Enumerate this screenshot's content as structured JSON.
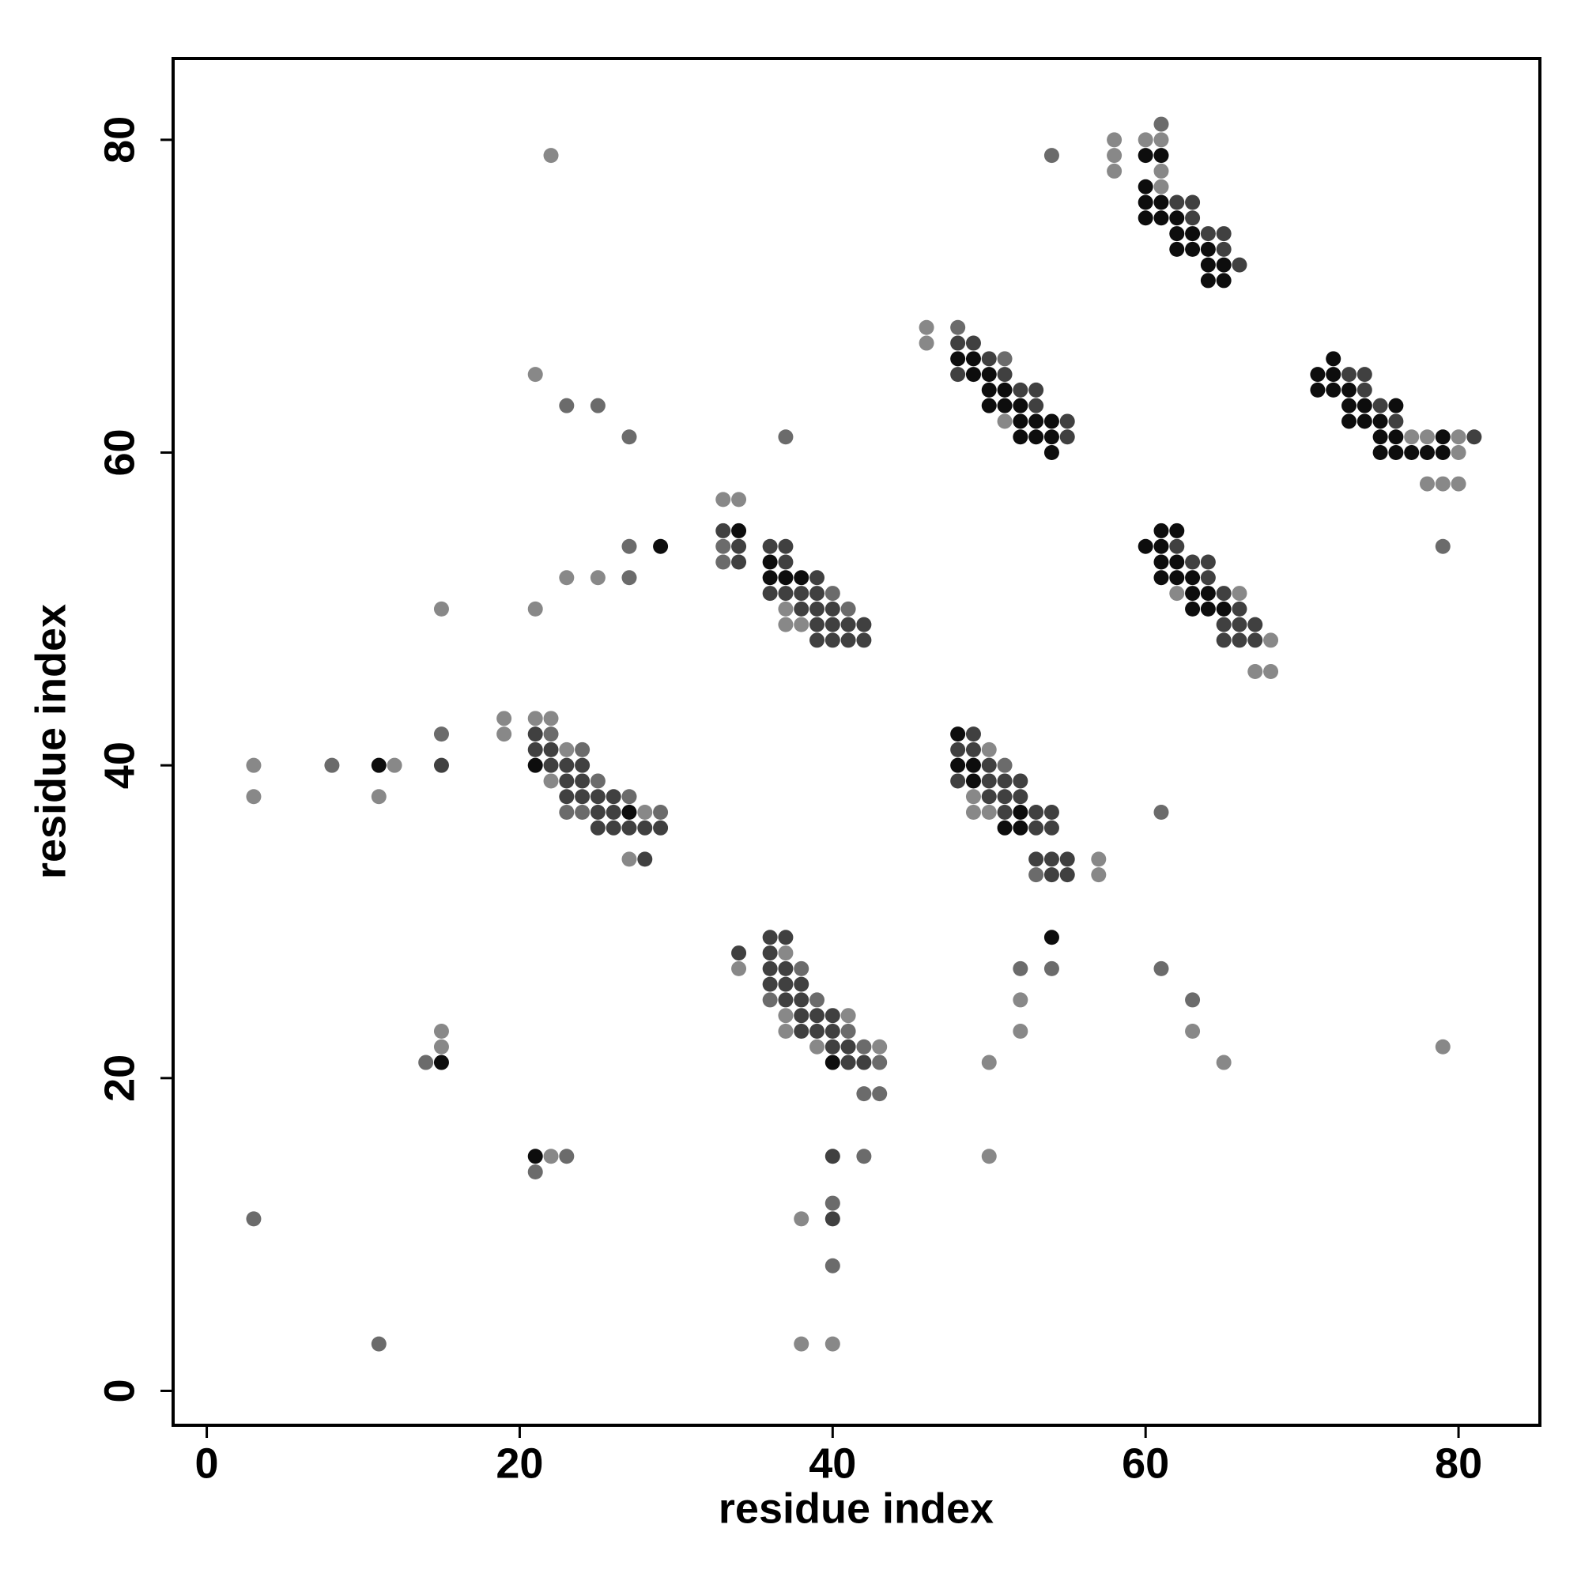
{
  "chart_data": {
    "type": "scatter",
    "xlabel": "residue index",
    "ylabel": "residue index",
    "xlim": [
      -2.15,
      85.2
    ],
    "ylim": [
      -2.2,
      85.2
    ],
    "xticks": [
      0,
      20,
      40,
      60,
      80
    ],
    "yticks": [
      0,
      20,
      40,
      60,
      80
    ],
    "grid": false,
    "series": [
      {
        "color": "#888888",
        "x": [
          58,
          58,
          58,
          60,
          61,
          61,
          61,
          46,
          46,
          51,
          77,
          78,
          80,
          80,
          78,
          79,
          80,
          79,
          62,
          66,
          68,
          67,
          68,
          63,
          65,
          50,
          49,
          49,
          50,
          57,
          57,
          52,
          52,
          50,
          50,
          37,
          34,
          37,
          41,
          37,
          39,
          43,
          38,
          38,
          40,
          33,
          34,
          37,
          37,
          38,
          19,
          21,
          22,
          19,
          23,
          22,
          28,
          27,
          3,
          3,
          12,
          11,
          15,
          21,
          23,
          25,
          21,
          22,
          15,
          15,
          22
        ],
        "values": [
          80,
          79,
          78,
          80,
          80,
          78,
          77,
          68,
          67,
          62,
          61,
          61,
          61,
          60,
          58,
          58,
          58,
          22,
          51,
          51,
          48,
          46,
          46,
          23,
          21,
          41,
          38,
          37,
          37,
          34,
          33,
          25,
          23,
          21,
          15,
          28,
          27,
          24,
          24,
          23,
          22,
          22,
          11,
          3,
          3,
          57,
          57,
          50,
          49,
          49,
          43,
          43,
          43,
          42,
          41,
          39,
          37,
          34,
          40,
          38,
          40,
          38,
          50,
          50,
          52,
          52,
          65,
          79,
          22,
          23,
          15
        ]
      },
      {
        "color": "#6b6b6b",
        "x": [
          61,
          54,
          48,
          51,
          79,
          61,
          61,
          63,
          51,
          53,
          52,
          54,
          38,
          36,
          39,
          41,
          42,
          43,
          42,
          43,
          42,
          40,
          40,
          33,
          33,
          40,
          41,
          22,
          24,
          25,
          27,
          23,
          24,
          29,
          8,
          15,
          27,
          27,
          23,
          25,
          27,
          37,
          14,
          21,
          23,
          3,
          11
        ],
        "values": [
          81,
          79,
          68,
          66,
          54,
          37,
          27,
          25,
          40,
          33,
          27,
          27,
          27,
          25,
          25,
          23,
          22,
          21,
          19,
          19,
          15,
          12,
          8,
          54,
          53,
          51,
          50,
          42,
          41,
          39,
          38,
          37,
          37,
          37,
          40,
          42,
          52,
          54,
          63,
          63,
          61,
          61,
          21,
          14,
          15,
          11,
          3
        ]
      },
      {
        "color": "#404040",
        "x": [
          62,
          63,
          63,
          64,
          65,
          65,
          66,
          48,
          49,
          50,
          48,
          51,
          52,
          53,
          53,
          55,
          55,
          73,
          74,
          74,
          75,
          76,
          81,
          62,
          63,
          64,
          64,
          65,
          66,
          65,
          66,
          67,
          65,
          66,
          67,
          49,
          48,
          49,
          50,
          48,
          50,
          51,
          52,
          50,
          51,
          52,
          51,
          53,
          54,
          53,
          54,
          53,
          54,
          55,
          54,
          55,
          36,
          37,
          34,
          36,
          36,
          37,
          36,
          37,
          38,
          37,
          38,
          38,
          39,
          40,
          38,
          39,
          40,
          40,
          41,
          41,
          42,
          40,
          40,
          33,
          34,
          34,
          36,
          37,
          37,
          39,
          36,
          37,
          38,
          39,
          38,
          39,
          40,
          39,
          40,
          41,
          42,
          39,
          40,
          41,
          42,
          21,
          21,
          22,
          22,
          23,
          24,
          23,
          24,
          23,
          24,
          25,
          26,
          25,
          26,
          25,
          26,
          27,
          28,
          29,
          28,
          15
        ],
        "values": [
          76,
          76,
          75,
          74,
          74,
          73,
          72,
          67,
          67,
          66,
          65,
          65,
          64,
          64,
          63,
          62,
          61,
          65,
          65,
          64,
          63,
          62,
          61,
          54,
          53,
          53,
          52,
          51,
          50,
          49,
          49,
          49,
          48,
          48,
          48,
          42,
          41,
          41,
          40,
          39,
          39,
          39,
          39,
          38,
          38,
          38,
          37,
          37,
          37,
          36,
          36,
          34,
          34,
          34,
          33,
          33,
          29,
          29,
          28,
          28,
          27,
          27,
          26,
          26,
          26,
          25,
          25,
          24,
          24,
          24,
          23,
          23,
          23,
          22,
          22,
          21,
          21,
          15,
          11,
          55,
          54,
          53,
          54,
          54,
          53,
          52,
          51,
          51,
          51,
          51,
          50,
          50,
          50,
          49,
          49,
          49,
          49,
          48,
          48,
          48,
          48,
          42,
          41,
          41,
          40,
          40,
          40,
          39,
          39,
          38,
          38,
          38,
          38,
          37,
          37,
          36,
          36,
          36,
          36,
          36,
          34,
          40
        ]
      },
      {
        "color": "#0d0d0d",
        "x": [
          60,
          61,
          60,
          60,
          61,
          60,
          61,
          62,
          62,
          63,
          62,
          63,
          64,
          64,
          65,
          64,
          65,
          48,
          49,
          49,
          50,
          50,
          51,
          50,
          51,
          52,
          52,
          53,
          54,
          52,
          53,
          54,
          54,
          72,
          71,
          72,
          71,
          72,
          73,
          73,
          74,
          76,
          73,
          74,
          75,
          75,
          76,
          79,
          75,
          76,
          77,
          78,
          79,
          61,
          62,
          60,
          61,
          61,
          62,
          61,
          62,
          63,
          63,
          64,
          63,
          64,
          65,
          48,
          48,
          49,
          49,
          52,
          51,
          52,
          54,
          40,
          34,
          36,
          36,
          37,
          38,
          29,
          21,
          27,
          11,
          15,
          21
        ],
        "values": [
          79,
          79,
          77,
          76,
          76,
          75,
          75,
          75,
          74,
          74,
          73,
          73,
          73,
          72,
          72,
          71,
          71,
          66,
          66,
          65,
          65,
          64,
          64,
          63,
          63,
          63,
          62,
          62,
          62,
          61,
          61,
          61,
          60,
          66,
          65,
          65,
          64,
          64,
          64,
          63,
          63,
          63,
          62,
          62,
          62,
          61,
          61,
          61,
          60,
          60,
          60,
          60,
          60,
          55,
          55,
          54,
          54,
          53,
          53,
          52,
          52,
          52,
          51,
          51,
          50,
          50,
          50,
          42,
          40,
          40,
          39,
          37,
          36,
          36,
          29,
          21,
          55,
          53,
          52,
          52,
          52,
          54,
          40,
          37,
          40,
          21,
          15
        ]
      }
    ]
  }
}
